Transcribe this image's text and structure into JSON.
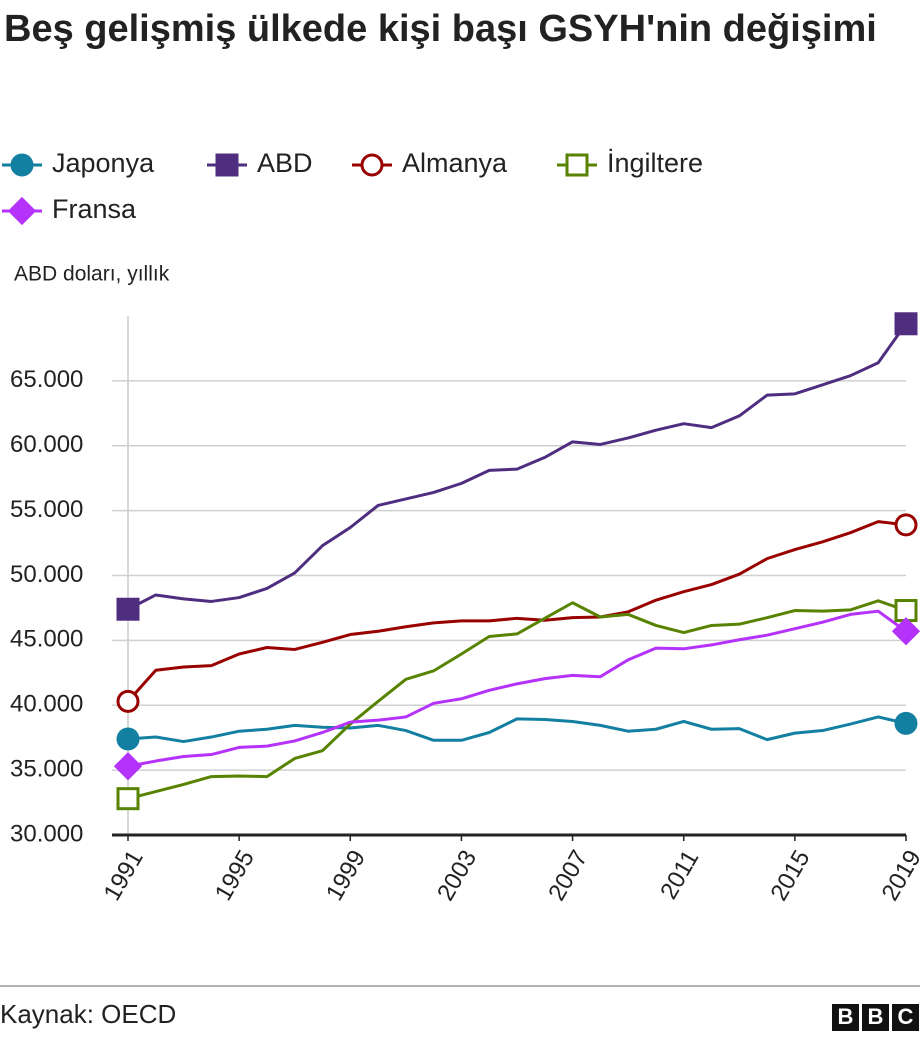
{
  "chart_data": {
    "type": "line",
    "title": "Beş gelişmiş ülkede kişi başı GSYH'nin değişimi",
    "subtitle": "ABD doları, yıllık",
    "source": "Kaynak: OECD",
    "logo": "BBC",
    "x": [
      1991,
      1992,
      1993,
      1994,
      1995,
      1996,
      1997,
      1998,
      1999,
      2000,
      2001,
      2002,
      2003,
      2004,
      2005,
      2006,
      2007,
      2008,
      2009,
      2010,
      2011,
      2012,
      2013,
      2014,
      2015,
      2016,
      2017,
      2018,
      2019
    ],
    "xlim": [
      1991,
      2019
    ],
    "xticks": [
      1991,
      1995,
      1999,
      2003,
      2007,
      2011,
      2015,
      2019
    ],
    "ylim": [
      30000,
      70000
    ],
    "yticks": [
      {
        "value": 30000,
        "label": "30.000"
      },
      {
        "value": 35000,
        "label": "35.000"
      },
      {
        "value": 40000,
        "label": "40.000"
      },
      {
        "value": 45000,
        "label": "45.000"
      },
      {
        "value": 50000,
        "label": "50.000"
      },
      {
        "value": 55000,
        "label": "55.000"
      },
      {
        "value": 60000,
        "label": "60.000"
      },
      {
        "value": 65000,
        "label": "65.000"
      }
    ],
    "grid": true,
    "series": [
      {
        "name": "Japonya",
        "color": "#1380a1",
        "marker": "circle",
        "filled": true,
        "values": [
          37400,
          37550,
          37200,
          37550,
          38000,
          38150,
          38450,
          38300,
          38250,
          38450,
          38050,
          37300,
          37300,
          37900,
          38950,
          38900,
          38750,
          38450,
          38000,
          38150,
          38750,
          38150,
          38200,
          37350,
          37850,
          38050,
          38550,
          39100,
          38600
        ]
      },
      {
        "name": "ABD",
        "color": "#4f2d7f",
        "marker": "square",
        "filled": true,
        "values": [
          47400,
          48500,
          48200,
          48000,
          48300,
          49000,
          50200,
          52300,
          53700,
          55400,
          55900,
          56400,
          57100,
          58100,
          58200,
          59100,
          60300,
          60100,
          60600,
          61200,
          61700,
          61400,
          62300,
          63900,
          64000,
          64700,
          65400,
          66400,
          69400
        ]
      },
      {
        "name": "Almanya",
        "color": "#990000",
        "marker": "circle",
        "filled": false,
        "values": [
          40300,
          42700,
          42950,
          43050,
          43950,
          44450,
          44300,
          44850,
          45450,
          45700,
          46050,
          46350,
          46500,
          46500,
          46700,
          46550,
          46750,
          46800,
          47200,
          48100,
          48750,
          49300,
          50100,
          51300,
          52000,
          52600,
          53300,
          54150,
          53900
        ]
      },
      {
        "name": "İngiltere",
        "color": "#588300",
        "marker": "square",
        "filled": false,
        "values": [
          32800,
          33350,
          33900,
          34500,
          34550,
          34500,
          35900,
          36500,
          38550,
          40300,
          42000,
          42650,
          43950,
          45300,
          45500,
          46700,
          47900,
          46800,
          47000,
          46150,
          45600,
          46150,
          46250,
          46750,
          47300,
          47250,
          47350,
          48050,
          47300
        ]
      },
      {
        "name": "Fransa",
        "color": "#b432fa",
        "marker": "diamond",
        "filled": true,
        "values": [
          35300,
          35700,
          36050,
          36200,
          36750,
          36850,
          37250,
          37900,
          38700,
          38850,
          39100,
          40150,
          40500,
          41150,
          41650,
          42050,
          42300,
          42200,
          43500,
          44400,
          44350,
          44650,
          45050,
          45400,
          45900,
          46400,
          47000,
          47250,
          45700
        ]
      }
    ]
  }
}
